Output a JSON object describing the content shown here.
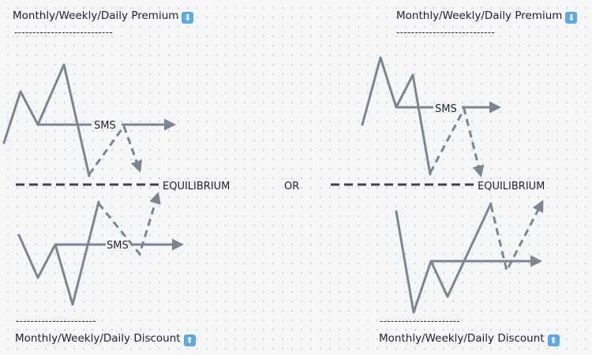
{
  "premium_label": "Monthly/Weekly/Daily Premium",
  "discount_label": "Monthly/Weekly/Daily Discount",
  "premium_icon": "⬇",
  "discount_icon": "⬆",
  "premium_icon_name": "down-arrow-icon",
  "discount_icon_name": "up-arrow-icon",
  "separator": "---------------------------",
  "separator_short": "----------------------",
  "sms_label": "SMS",
  "equilibrium_label": "EQUILIBRIUM",
  "or_label": "OR",
  "colors": {
    "line": "#7c8591",
    "dash": "#3f444b",
    "text": "#1f2329",
    "icon_bg": "#5aa9e6"
  }
}
